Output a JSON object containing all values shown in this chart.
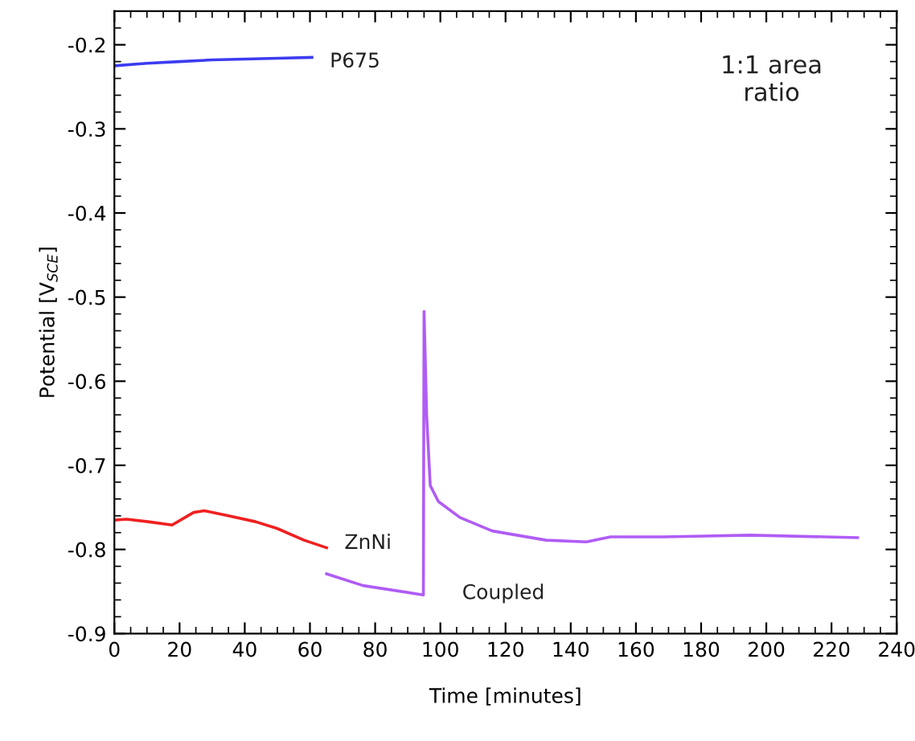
{
  "chart_data": {
    "type": "line",
    "xlabel": "Time [minutes]",
    "ylabel": "Potential [V$_{SCE}$]",
    "xlim": [
      0,
      240
    ],
    "ylim": [
      -0.9,
      -0.16
    ],
    "xticks": [
      0,
      20,
      40,
      60,
      80,
      100,
      120,
      140,
      160,
      180,
      200,
      220,
      240
    ],
    "yticks": [
      -0.9,
      -0.8,
      -0.7,
      -0.6,
      -0.5,
      -0.4,
      -0.3,
      -0.2
    ],
    "grid": false,
    "legend": false,
    "marker": "none",
    "line_style": "solid",
    "annotations": [
      "1:1 area\nratio"
    ],
    "series": [
      {
        "name": "P675",
        "color": "#3c3cf0",
        "x": [
          0,
          10,
          20,
          30,
          40,
          50,
          60.6
        ],
        "values": [
          -0.225,
          -0.222,
          -0.22,
          -0.218,
          -0.217,
          -0.216,
          -0.215
        ]
      },
      {
        "name": "ZnNi",
        "color": "#f02020",
        "x": [
          0.4,
          3.7,
          10.3,
          17.7,
          24.3,
          27.6,
          35,
          43.3,
          49.9,
          58.2,
          65.1
        ],
        "values": [
          -0.765,
          -0.764,
          -0.767,
          -0.771,
          -0.756,
          -0.754,
          -0.76,
          -0.767,
          -0.775,
          -0.789,
          -0.798
        ]
      },
      {
        "name": "Coupled",
        "color": "#b05cf5",
        "x": [
          65.1,
          76.3,
          94.8,
          95,
          95.8,
          96.9,
          99.4,
          106,
          115.9,
          132.4,
          144.8,
          152.2,
          168.7,
          195.1,
          228
        ],
        "values": [
          -0.829,
          -0.843,
          -0.854,
          -0.517,
          -0.641,
          -0.724,
          -0.743,
          -0.762,
          -0.778,
          -0.789,
          -0.791,
          -0.785,
          -0.785,
          -0.783,
          -0.786
        ]
      }
    ]
  }
}
